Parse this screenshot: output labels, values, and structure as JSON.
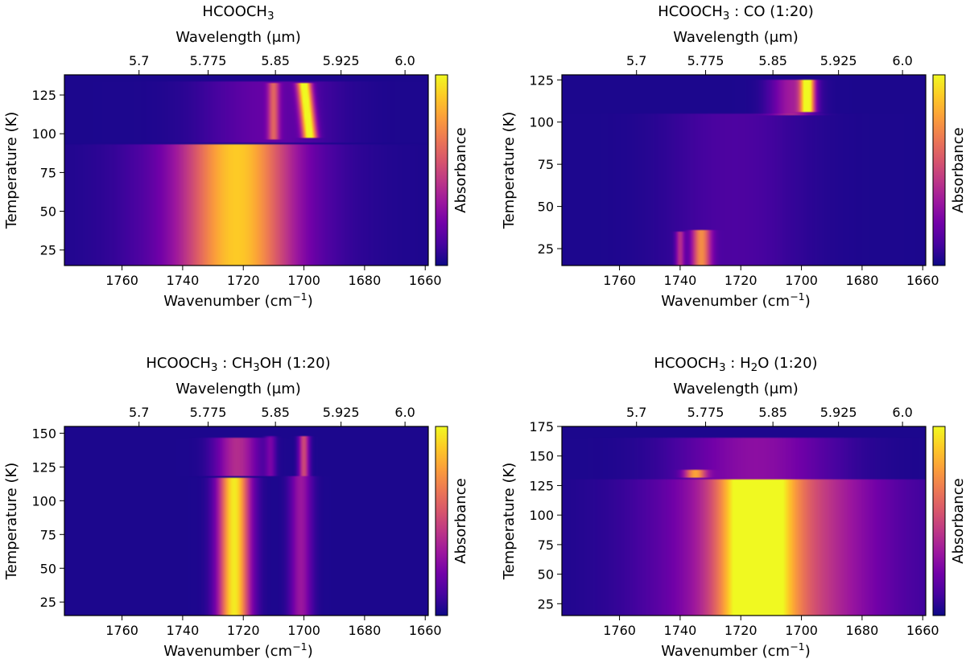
{
  "figure": {
    "colormap": "plasma",
    "colormap_stops": [
      "#0d0887",
      "#46039f",
      "#7201a8",
      "#9c179e",
      "#bd3786",
      "#d8576b",
      "#ed7953",
      "#fb9f3a",
      "#fdca26",
      "#f0f921"
    ]
  },
  "chart_data": [
    {
      "type": "heatmap",
      "title_main": "HCOOCH",
      "title_sub": "3",
      "title_rest": "",
      "x_label_main": "Wavenumber (cm",
      "x_label_sup": "−1",
      "x_label_end": ")",
      "top_label_main": "Wavelength (",
      "top_label_mu": "μ",
      "top_label_end": "m)",
      "y_label": "Temperature (K)",
      "colorbar_label": "Absorbance",
      "x_range": [
        1779,
        1659
      ],
      "y_range": [
        15,
        138
      ],
      "x_ticks": [
        "1760",
        "1740",
        "1720",
        "1700",
        "1680",
        "1660"
      ],
      "y_ticks": [
        "25",
        "50",
        "75",
        "100",
        "125"
      ],
      "top_ticks": [
        "5.7",
        "5.775",
        "5.85",
        "5.925",
        "6.0"
      ],
      "bands": [
        {
          "xc": 1722,
          "xw": 12,
          "y0": 15,
          "y1": 93,
          "amp": 0.64
        },
        {
          "xc": 1724,
          "xw": 22,
          "y0": 15,
          "y1": 93,
          "amp": 0.22
        },
        {
          "xc": 1698,
          "xw": 1.6,
          "y0": 97,
          "y1": 133,
          "amp": 0.98,
          "slope": 0.055
        },
        {
          "xc": 1710,
          "xw": 1.3,
          "y0": 96,
          "y1": 133,
          "amp": 0.42
        },
        {
          "xc": 1712,
          "xw": 15,
          "y0": 94,
          "y1": 134,
          "amp": 0.16
        }
      ]
    },
    {
      "type": "heatmap",
      "title_main": "HCOOCH",
      "title_sub": "3",
      "title_rest": " : CO (1:20)",
      "x_label_main": "Wavenumber (cm",
      "x_label_sup": "−1",
      "x_label_end": ")",
      "top_label_main": "Wavelength (",
      "top_label_mu": "μ",
      "top_label_end": "m)",
      "y_label": "Temperature (K)",
      "colorbar_label": "Absorbance",
      "x_range": [
        1779,
        1659
      ],
      "y_range": [
        15,
        128
      ],
      "x_ticks": [
        "1760",
        "1740",
        "1720",
        "1700",
        "1680",
        "1660"
      ],
      "y_ticks": [
        "25",
        "50",
        "75",
        "100",
        "125"
      ],
      "top_ticks": [
        "5.7",
        "5.775",
        "5.85",
        "5.925",
        "6.0"
      ],
      "bands": [
        {
          "xc": 1733,
          "xw": 2.2,
          "y0": 15,
          "y1": 36,
          "amp": 0.62
        },
        {
          "xc": 1740,
          "xw": 1.0,
          "y0": 15,
          "y1": 35,
          "amp": 0.34
        },
        {
          "xc": 1722,
          "xw": 16,
          "y0": 15,
          "y1": 105,
          "amp": 0.1
        },
        {
          "xc": 1698,
          "xw": 1.6,
          "y0": 106,
          "y1": 125,
          "amp": 0.95
        },
        {
          "xc": 1703,
          "xw": 5,
          "y0": 104,
          "y1": 125,
          "amp": 0.32
        }
      ]
    },
    {
      "type": "heatmap",
      "title_main": "HCOOCH",
      "title_sub": "3",
      "title_rest": " : CH",
      "title_sub2": "3",
      "title_rest2": "OH (1:20)",
      "x_label_main": "Wavenumber (cm",
      "x_label_sup": "−1",
      "x_label_end": ")",
      "top_label_main": "Wavelength (",
      "top_label_mu": "μ",
      "top_label_end": "m)",
      "y_label": "Temperature (K)",
      "colorbar_label": "Absorbance",
      "x_range": [
        1779,
        1659
      ],
      "y_range": [
        15,
        155
      ],
      "x_ticks": [
        "1760",
        "1740",
        "1720",
        "1700",
        "1680",
        "1660"
      ],
      "y_ticks": [
        "25",
        "50",
        "75",
        "100",
        "125",
        "150"
      ],
      "top_ticks": [
        "5.7",
        "5.775",
        "5.85",
        "5.925",
        "6.0"
      ],
      "bands": [
        {
          "xc": 1723,
          "xw": 3.6,
          "y0": 15,
          "y1": 117,
          "amp": 0.94
        },
        {
          "xc": 1701,
          "xw": 2.5,
          "y0": 15,
          "y1": 118,
          "amp": 0.3
        },
        {
          "xc": 1722,
          "xw": 5,
          "y0": 118,
          "y1": 147,
          "amp": 0.38
        },
        {
          "xc": 1700,
          "xw": 1.2,
          "y0": 118,
          "y1": 148,
          "amp": 0.48
        },
        {
          "xc": 1711,
          "xw": 1.2,
          "y0": 118,
          "y1": 148,
          "amp": 0.18
        }
      ]
    },
    {
      "type": "heatmap",
      "title_main": "HCOOCH",
      "title_sub": "3",
      "title_rest": " : H",
      "title_sub2": "2",
      "title_rest2": "O (1:20)",
      "x_label_main": "Wavenumber (cm",
      "x_label_sup": "−1",
      "x_label_end": ")",
      "top_label_main": "Wavelength (",
      "top_label_mu": "μ",
      "top_label_end": "m)",
      "y_label": "Temperature (K)",
      "colorbar_label": "Absorbance",
      "x_range": [
        1779,
        1659
      ],
      "y_range": [
        15,
        175
      ],
      "x_ticks": [
        "1760",
        "1740",
        "1720",
        "1700",
        "1680",
        "1660"
      ],
      "y_ticks": [
        "25",
        "50",
        "75",
        "100",
        "125",
        "150",
        "175"
      ],
      "top_ticks": [
        "5.7",
        "5.775",
        "5.85",
        "5.925",
        "6.0"
      ],
      "bands": [
        {
          "xc": 1715,
          "xw": 8,
          "y0": 15,
          "y1": 130,
          "amp": 0.78
        },
        {
          "xc": 1710,
          "xw": 20,
          "y0": 15,
          "y1": 130,
          "amp": 0.38
        },
        {
          "xc": 1735,
          "xw": 2.5,
          "y0": 131,
          "y1": 139,
          "amp": 0.62
        },
        {
          "xc": 1715,
          "xw": 18,
          "y0": 130,
          "y1": 165,
          "amp": 0.26
        },
        {
          "xc": 1705,
          "xw": 30,
          "y0": 15,
          "y1": 130,
          "amp": 0.18
        }
      ]
    }
  ]
}
